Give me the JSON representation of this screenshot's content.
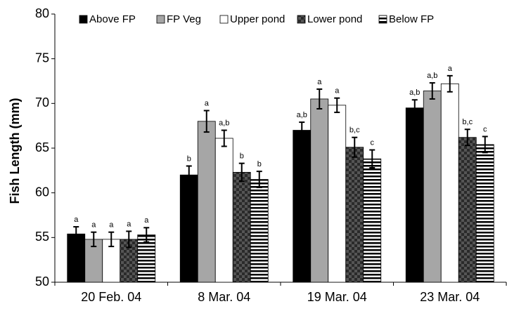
{
  "chart_data": {
    "type": "bar",
    "y_label": "Fish Length (mm)",
    "categories": [
      "20 Feb. 04",
      "8 Mar. 04",
      "19 Mar. 04",
      "23 Mar. 04"
    ],
    "ylim": [
      50,
      80
    ],
    "yticks": [
      50,
      55,
      60,
      65,
      70,
      75,
      80
    ],
    "series": [
      {
        "name": "Above FP",
        "color": "#000000",
        "pattern": "solid",
        "values": [
          55.4,
          62.0,
          67.0,
          69.5
        ],
        "errors": [
          0.8,
          1.0,
          0.9,
          0.9
        ],
        "letters": [
          "a",
          "b",
          "a,b",
          "a,b"
        ]
      },
      {
        "name": "FP Veg",
        "color": "#a6a6a6",
        "pattern": "solid",
        "values": [
          54.8,
          68.0,
          70.5,
          71.4
        ],
        "errors": [
          0.8,
          1.2,
          1.1,
          0.9
        ],
        "letters": [
          "a",
          "a",
          "a",
          "a,b"
        ]
      },
      {
        "name": "Upper pond",
        "color": "#ffffff",
        "pattern": "solid",
        "values": [
          54.8,
          66.1,
          69.8,
          72.2
        ],
        "errors": [
          0.8,
          0.9,
          0.8,
          0.9
        ],
        "letters": [
          "a",
          "a,b",
          "a",
          "a"
        ]
      },
      {
        "name": "Lower pond",
        "color": "#2a2a2a",
        "pattern": "checker",
        "values": [
          54.8,
          62.3,
          65.1,
          66.2
        ],
        "errors": [
          0.9,
          1.0,
          1.1,
          0.9
        ],
        "letters": [
          "a",
          "b",
          "b,c",
          "b,c"
        ]
      },
      {
        "name": "Below FP",
        "color": "#000000",
        "pattern": "stripes",
        "values": [
          55.3,
          61.5,
          63.8,
          65.4
        ],
        "errors": [
          0.8,
          0.9,
          1.0,
          0.9
        ],
        "letters": [
          "a",
          "b",
          "c",
          "c"
        ]
      }
    ]
  }
}
